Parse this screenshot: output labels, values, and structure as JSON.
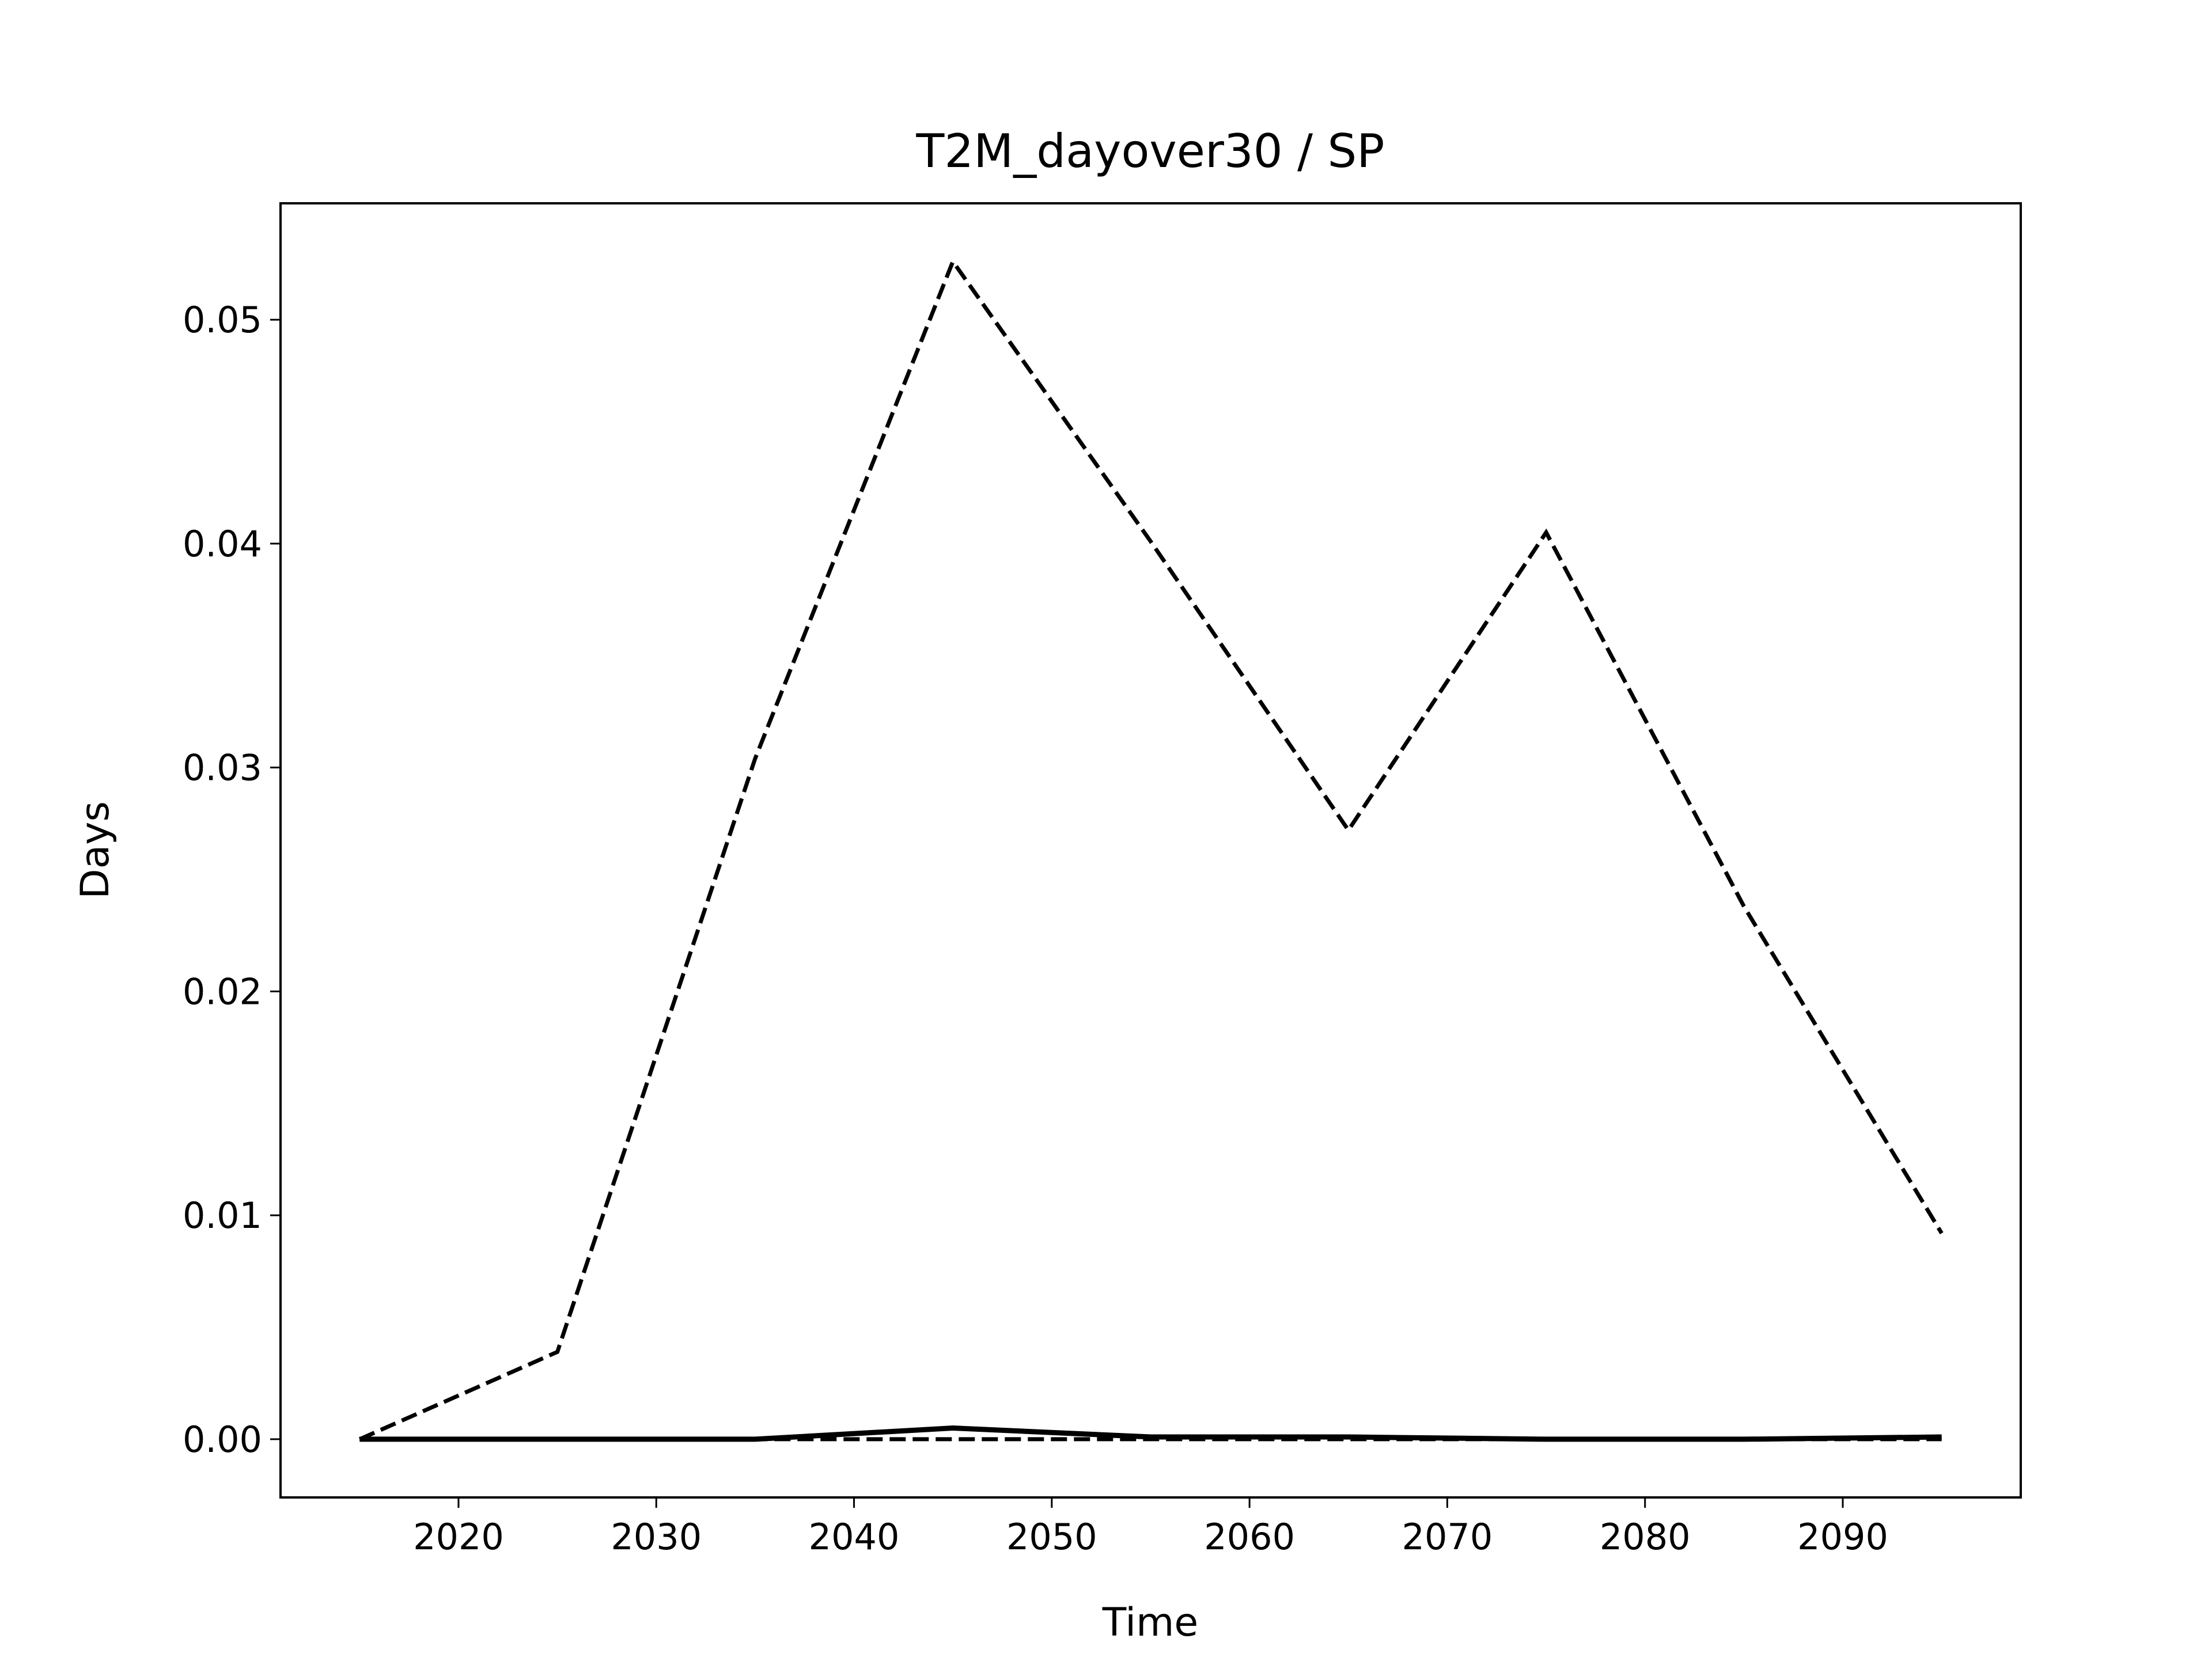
{
  "chart_data": {
    "type": "line",
    "title": "T2M_dayover30 / SP",
    "xlabel": "Time",
    "ylabel": "Days",
    "xlim": [
      2011,
      2099
    ],
    "ylim": [
      -0.0026,
      0.0552
    ],
    "xticks": [
      2020,
      2030,
      2040,
      2050,
      2060,
      2070,
      2080,
      2090
    ],
    "yticks": [
      0.0,
      0.01,
      0.02,
      0.03,
      0.04,
      0.05
    ],
    "ytick_labels": [
      "0.00",
      "0.01",
      "0.02",
      "0.03",
      "0.04",
      "0.05"
    ],
    "grid": false,
    "x": [
      2015,
      2025,
      2035,
      2045,
      2055,
      2065,
      2075,
      2085,
      2095
    ],
    "series": [
      {
        "style": "dashed",
        "color": "#000000",
        "values": [
          0.0,
          0.0039,
          0.0304,
          0.0526,
          0.0401,
          0.0272,
          0.0405,
          0.0238,
          0.0092
        ]
      },
      {
        "style": "solid",
        "color": "#000000",
        "values": [
          0.0,
          0.0,
          0.0,
          0.0005,
          0.0001,
          0.0001,
          0.0,
          0.0,
          0.0001
        ]
      },
      {
        "style": "dashed",
        "color": "#000000",
        "values": [
          0.0,
          0.0,
          0.0,
          0.0,
          0.0,
          0.0,
          0.0,
          0.0,
          0.0
        ]
      }
    ]
  }
}
